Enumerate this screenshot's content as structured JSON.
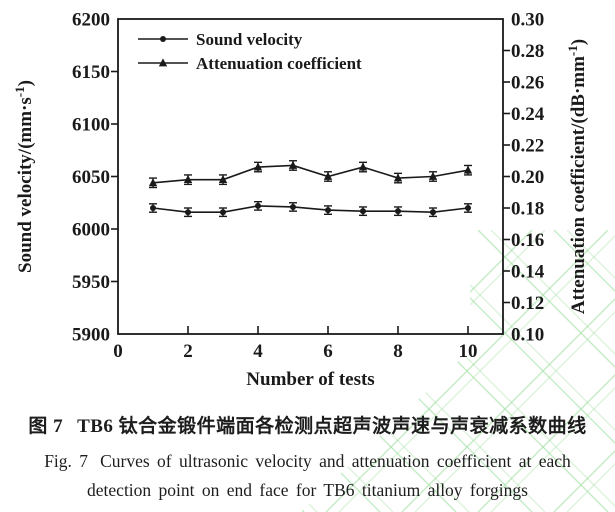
{
  "figure": {
    "caption_zh_label": "图 7",
    "caption_zh_text": "TB6 钛合金锻件端面各检测点超声波声速与声衰减系数曲线",
    "caption_en_label": "Fig. 7",
    "caption_en_line1": "Curves of ultrasonic velocity and attenuation coefficient at each",
    "caption_en_line2": "detection point on end face for TB6 titanium alloy forgings"
  },
  "colors": {
    "line": "#1a1a1a",
    "text": "#1a1a1a",
    "watermark": "#9ede9e"
  },
  "chart_data": {
    "type": "line",
    "x": [
      1,
      2,
      3,
      4,
      5,
      6,
      7,
      8,
      9,
      10
    ],
    "xlabel": "Number of tests",
    "xlim": [
      0,
      11
    ],
    "xticks": [
      0,
      2,
      4,
      6,
      8,
      10
    ],
    "grid": false,
    "legend_position": "top-left",
    "left_axis": {
      "label": "Sound velocity/(mm·s⁻¹)",
      "lim": [
        5900,
        6200
      ],
      "ticks": [
        5900,
        5950,
        6000,
        6050,
        6100,
        6150,
        6200
      ]
    },
    "right_axis": {
      "label": "Attenuation coefficient/(dB·mm⁻¹)",
      "lim": [
        0.1,
        0.3
      ],
      "ticks": [
        0.1,
        0.12,
        0.14,
        0.16,
        0.18,
        0.2,
        0.22,
        0.24,
        0.26,
        0.28,
        0.3
      ]
    },
    "series": [
      {
        "name": "Sound velocity",
        "axis": "left",
        "marker": "circle",
        "values": [
          6020,
          6016,
          6016,
          6022,
          6021,
          6018,
          6017,
          6017,
          6016,
          6020
        ],
        "error": 4
      },
      {
        "name": "Attenuation coefficient",
        "axis": "right",
        "marker": "triangle",
        "values": [
          0.196,
          0.198,
          0.198,
          0.206,
          0.207,
          0.2,
          0.206,
          0.199,
          0.2,
          0.204
        ],
        "error": 0.003
      }
    ]
  }
}
